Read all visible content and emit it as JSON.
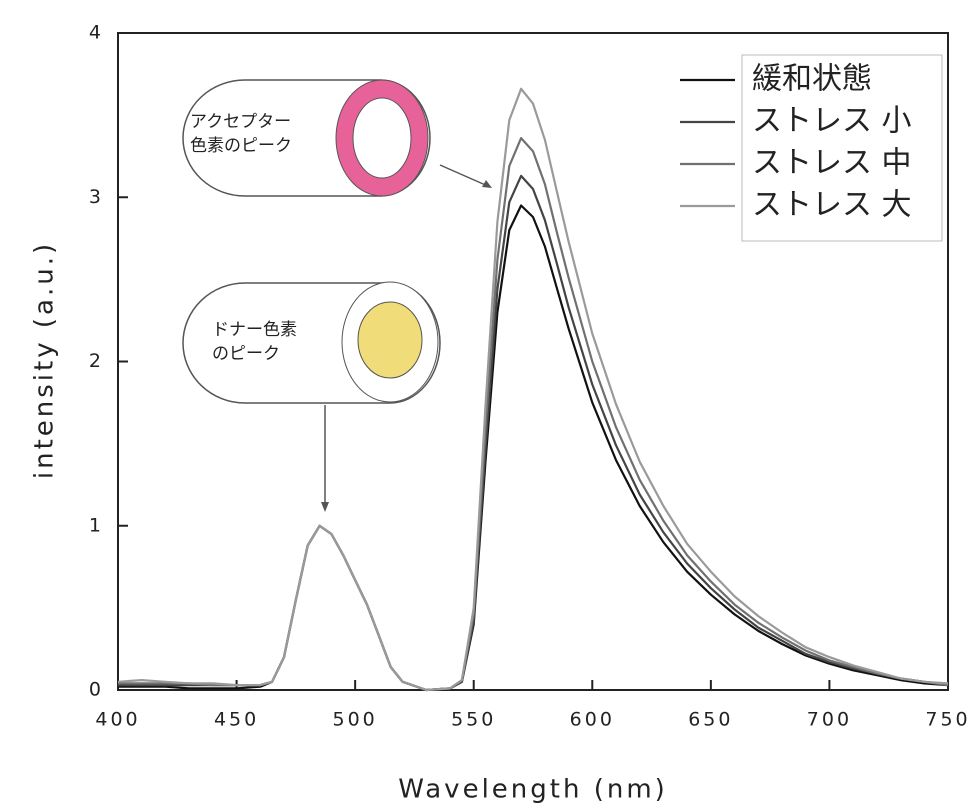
{
  "chart_data": {
    "type": "line",
    "xlabel": "Wavelength (nm)",
    "ylabel": "intensity (a.u.)",
    "x": [
      400,
      410,
      420,
      430,
      440,
      450,
      460,
      465,
      470,
      475,
      480,
      485,
      490,
      495,
      500,
      505,
      510,
      515,
      520,
      530,
      540,
      545,
      550,
      555,
      560,
      565,
      570,
      575,
      580,
      585,
      590,
      600,
      610,
      620,
      630,
      640,
      650,
      660,
      670,
      680,
      690,
      700,
      710,
      720,
      730,
      740,
      750
    ],
    "series": [
      {
        "name": "緩和状態",
        "color": "#111111",
        "values": [
          0.02,
          0.02,
          0.02,
          0.01,
          0.01,
          0.01,
          0.02,
          0.05,
          0.2,
          0.55,
          0.88,
          1.0,
          0.95,
          0.82,
          0.67,
          0.52,
          0.33,
          0.14,
          0.05,
          0.0,
          0.01,
          0.05,
          0.4,
          1.4,
          2.3,
          2.8,
          2.95,
          2.88,
          2.7,
          2.45,
          2.2,
          1.75,
          1.4,
          1.12,
          0.9,
          0.72,
          0.58,
          0.46,
          0.36,
          0.28,
          0.21,
          0.16,
          0.12,
          0.09,
          0.06,
          0.04,
          0.03
        ]
      },
      {
        "name": "ストレス 小",
        "color": "#444444",
        "values": [
          0.03,
          0.03,
          0.03,
          0.03,
          0.03,
          0.03,
          0.03,
          0.05,
          0.2,
          0.55,
          0.88,
          1.0,
          0.95,
          0.82,
          0.67,
          0.52,
          0.33,
          0.14,
          0.05,
          0.0,
          0.01,
          0.05,
          0.42,
          1.48,
          2.44,
          2.97,
          3.13,
          3.05,
          2.86,
          2.6,
          2.33,
          1.86,
          1.49,
          1.19,
          0.96,
          0.77,
          0.62,
          0.49,
          0.38,
          0.3,
          0.22,
          0.17,
          0.13,
          0.1,
          0.07,
          0.05,
          0.03
        ]
      },
      {
        "name": "ストレス 中",
        "color": "#707070",
        "values": [
          0.04,
          0.04,
          0.04,
          0.04,
          0.03,
          0.03,
          0.03,
          0.05,
          0.2,
          0.55,
          0.88,
          1.0,
          0.95,
          0.82,
          0.67,
          0.52,
          0.33,
          0.14,
          0.05,
          0.0,
          0.01,
          0.06,
          0.46,
          1.6,
          2.62,
          3.19,
          3.36,
          3.28,
          3.08,
          2.79,
          2.51,
          2.0,
          1.6,
          1.28,
          1.03,
          0.82,
          0.66,
          0.52,
          0.41,
          0.32,
          0.24,
          0.18,
          0.14,
          0.1,
          0.07,
          0.05,
          0.03
        ]
      },
      {
        "name": "ストレス 大",
        "color": "#9a9a9a",
        "values": [
          0.05,
          0.06,
          0.05,
          0.04,
          0.04,
          0.03,
          0.03,
          0.05,
          0.2,
          0.55,
          0.88,
          1.0,
          0.95,
          0.82,
          0.67,
          0.52,
          0.33,
          0.14,
          0.05,
          0.0,
          0.01,
          0.06,
          0.5,
          1.74,
          2.85,
          3.47,
          3.66,
          3.57,
          3.35,
          3.04,
          2.73,
          2.17,
          1.74,
          1.39,
          1.12,
          0.89,
          0.72,
          0.57,
          0.45,
          0.35,
          0.26,
          0.2,
          0.15,
          0.11,
          0.07,
          0.05,
          0.04
        ]
      }
    ],
    "xlim": [
      400,
      750
    ],
    "xticks": [
      400,
      450,
      500,
      550,
      600,
      650,
      700,
      750
    ],
    "ylim": [
      0,
      4
    ],
    "yticks": [
      0,
      1,
      2,
      3,
      4
    ],
    "legend": "upper right",
    "annotations": [
      {
        "lines": [
          "アクセプター",
          "色素のピーク"
        ]
      },
      {
        "lines": [
          "ドナー色素",
          "のピーク"
        ]
      }
    ]
  }
}
